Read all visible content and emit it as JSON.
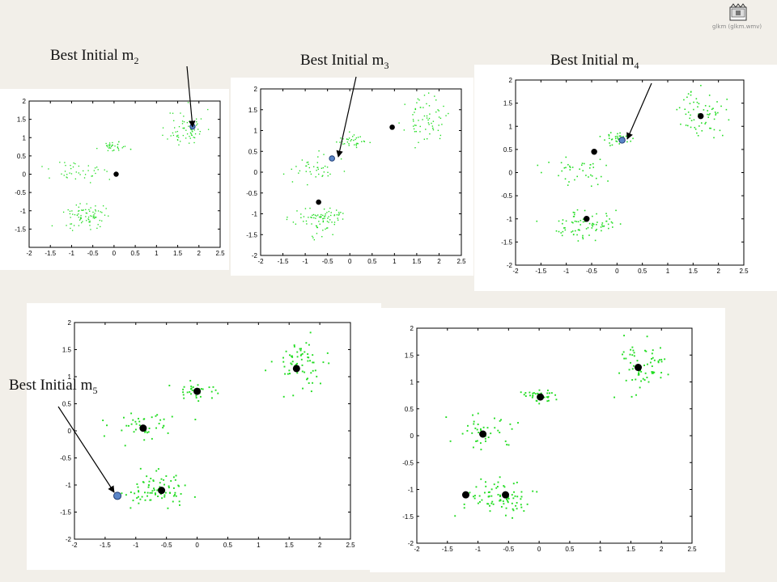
{
  "video": {
    "icon": "video-file-icon",
    "caption": "glkm (glkm.wmv)"
  },
  "annotations": [
    {
      "text": "Best Initial m",
      "sub": "2"
    },
    {
      "text": "Best Initial m",
      "sub": "3"
    },
    {
      "text": "Best Initial m",
      "sub": "4"
    },
    {
      "text": "Best Initial m",
      "sub": "5"
    }
  ],
  "colors": {
    "points": "#22dd22",
    "centroid": "#000000",
    "best_initial": "#5b86c8"
  },
  "chart_data": [
    {
      "type": "scatter",
      "xlim": [
        -2,
        2.5
      ],
      "ylim": [
        -2,
        2
      ],
      "xticks": [
        -2,
        -1.5,
        -1,
        -0.5,
        0,
        0.5,
        1,
        1.5,
        2,
        2.5
      ],
      "xtick_labels": [
        "-2",
        "-1.5",
        "-1",
        "-0.5",
        "0",
        "0.5",
        "1",
        "1.5",
        "2",
        "2.5"
      ],
      "yticks": [
        2,
        1.5,
        1,
        0.5,
        0,
        -0.5,
        -1,
        -1.5
      ],
      "ytick_labels": [
        "2",
        "1.5",
        "1",
        "0.5",
        "0",
        "-0.5",
        "-1",
        "-1.5"
      ],
      "centroids": [
        [
          0.05,
          0.0
        ]
      ],
      "best_initial": [
        [
          1.85,
          1.3
        ]
      ]
    },
    {
      "type": "scatter",
      "xlim": [
        -2,
        2.5
      ],
      "ylim": [
        -2,
        2
      ],
      "xticks": [
        -2,
        -1.5,
        -1,
        -0.5,
        0,
        0.5,
        1,
        1.5,
        2,
        2.5
      ],
      "xtick_labels": [
        "-2",
        "-1.5",
        "-1",
        "-0.5",
        "0",
        "0.5",
        "1",
        "1.5",
        "2",
        "2.5"
      ],
      "yticks": [
        2,
        1.5,
        1,
        0.5,
        0,
        -0.5,
        -1,
        -1.5,
        -2
      ],
      "ytick_labels": [
        "2",
        "1.5",
        "1",
        "0.5",
        "0",
        "-0.5",
        "-1",
        "-1.5",
        "-2"
      ],
      "centroids": [
        [
          0.95,
          1.08
        ],
        [
          -0.7,
          -0.72
        ]
      ],
      "best_initial": [
        [
          -0.4,
          0.33
        ]
      ]
    },
    {
      "type": "scatter",
      "xlim": [
        -2,
        2.5
      ],
      "ylim": [
        -2,
        2
      ],
      "xticks": [
        -2,
        -1.5,
        -1,
        -0.5,
        0,
        0.5,
        1,
        1.5,
        2,
        2.5
      ],
      "xtick_labels": [
        "-2",
        "-1.5",
        "-1",
        "-0.5",
        "0",
        "0.5",
        "1",
        "1.5",
        "2",
        "2.5"
      ],
      "yticks": [
        2,
        1.5,
        1,
        0.5,
        0,
        -0.5,
        -1,
        -1.5,
        -2
      ],
      "ytick_labels": [
        "2",
        "1.5",
        "1",
        "0.5",
        "0",
        "-0.5",
        "-1",
        "-1.5",
        "-2"
      ],
      "centroids": [
        [
          1.65,
          1.22
        ],
        [
          -0.45,
          0.45
        ],
        [
          -0.6,
          -1.0
        ]
      ],
      "best_initial": [
        [
          0.1,
          0.7
        ]
      ]
    },
    {
      "type": "scatter",
      "xlim": [
        -2,
        2.5
      ],
      "ylim": [
        -2,
        2
      ],
      "xticks": [
        -2,
        -1.5,
        -1,
        -0.5,
        0,
        0.5,
        1,
        1.5,
        2,
        2.5
      ],
      "xtick_labels": [
        "-2",
        "-1.5",
        "-1",
        "-0.5",
        "0",
        "0.5",
        "1",
        "1.5",
        "2",
        "2.5"
      ],
      "yticks": [
        2,
        1.5,
        1,
        0.5,
        0,
        -0.5,
        -1,
        -1.5,
        -2
      ],
      "ytick_labels": [
        "2",
        "1.5",
        "1",
        "0.5",
        "0",
        "-0.5",
        "-1",
        "-1.5",
        "-2"
      ],
      "centroids": [
        [
          1.62,
          1.15
        ],
        [
          0.0,
          0.73
        ],
        [
          -0.88,
          0.05
        ],
        [
          -0.58,
          -1.1
        ]
      ],
      "best_initial": [
        [
          -1.3,
          -1.2
        ]
      ]
    },
    {
      "type": "scatter",
      "xlim": [
        -2,
        2.5
      ],
      "ylim": [
        -2,
        2
      ],
      "xticks": [
        -2,
        -1.5,
        -1,
        -0.5,
        0,
        0.5,
        1,
        1.5,
        2,
        2.5
      ],
      "xtick_labels": [
        "-2",
        "-1.5",
        "-1",
        "-0.5",
        "0",
        "0.5",
        "1",
        "1.5",
        "2",
        "2.5"
      ],
      "yticks": [
        2,
        1.5,
        1,
        0.5,
        0,
        -0.5,
        -1,
        -1.5,
        -2
      ],
      "ytick_labels": [
        "2",
        "1.5",
        "1",
        "0.5",
        "0",
        "-0.5",
        "-1",
        "-1.5",
        "-2"
      ],
      "centroids": [
        [
          1.62,
          1.27
        ],
        [
          0.02,
          0.72
        ],
        [
          -0.92,
          0.03
        ],
        [
          -1.2,
          -1.1
        ],
        [
          -0.55,
          -1.1
        ]
      ],
      "best_initial": []
    }
  ]
}
